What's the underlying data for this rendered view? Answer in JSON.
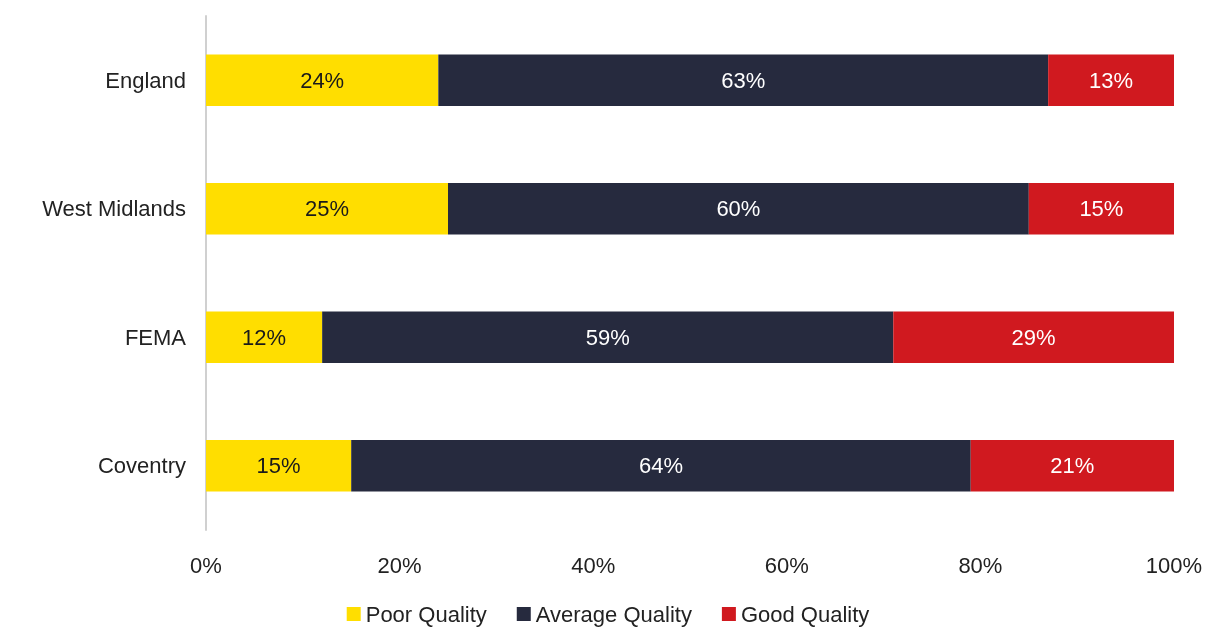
{
  "chart_data": {
    "type": "bar",
    "orientation": "horizontal",
    "stacked": true,
    "categories": [
      "England",
      "West Midlands",
      "FEMA",
      "Coventry"
    ],
    "series": [
      {
        "name": "Poor Quality",
        "color": "#ffde00",
        "values": [
          24,
          25,
          12,
          15
        ],
        "value_labels": [
          "24%",
          "25%",
          "12%",
          "15%"
        ]
      },
      {
        "name": "Average Quality",
        "color": "#262a3e",
        "values": [
          63,
          60,
          59,
          64
        ],
        "value_labels": [
          "63%",
          "60%",
          "59%",
          "64%"
        ]
      },
      {
        "name": "Good Quality",
        "color": "#d0191f",
        "values": [
          13,
          15,
          29,
          21
        ],
        "value_labels": [
          "13%",
          "15%",
          "29%",
          "21%"
        ]
      }
    ],
    "xlim": [
      0,
      100
    ],
    "xticks": [
      {
        "value": 0,
        "label": "0%"
      },
      {
        "value": 20,
        "label": "20%"
      },
      {
        "value": 40,
        "label": "40%"
      },
      {
        "value": 60,
        "label": "60%"
      },
      {
        "value": 80,
        "label": "80%"
      },
      {
        "value": 100,
        "label": "100%"
      }
    ],
    "grid": false,
    "legend": "bottom"
  }
}
